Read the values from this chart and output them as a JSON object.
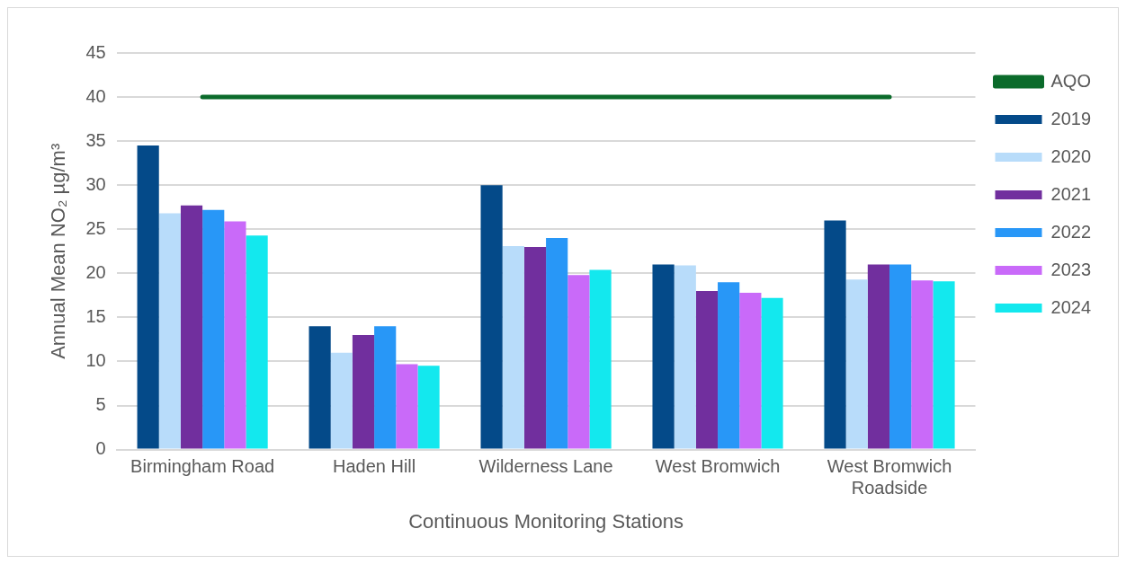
{
  "chart_data": {
    "type": "bar",
    "xlabel": "Continuous Monitoring Stations",
    "ylabel": "Annual Mean NO₂ µg/m³",
    "categories": [
      "Birmingham Road",
      "Haden Hill",
      "Wilderness Lane",
      "West Bromwich",
      "West Bromwich Roadside"
    ],
    "series": [
      {
        "name": "2019",
        "color": "#044a89",
        "values": [
          34.5,
          14,
          30,
          21,
          26
        ]
      },
      {
        "name": "2020",
        "color": "#b8dcfa",
        "values": [
          26.8,
          11,
          23.1,
          20.9,
          19.3
        ]
      },
      {
        "name": "2021",
        "color": "#712f9e",
        "values": [
          27.7,
          13,
          23,
          18,
          21
        ]
      },
      {
        "name": "2022",
        "color": "#2897f7",
        "values": [
          27.2,
          14,
          24,
          19,
          21
        ]
      },
      {
        "name": "2023",
        "color": "#c96af9",
        "values": [
          25.9,
          9.7,
          19.8,
          17.8,
          19.2
        ]
      },
      {
        "name": "2024",
        "color": "#13e8ee",
        "values": [
          24.3,
          9.5,
          20.4,
          17.2,
          19.1
        ]
      },
      {
        "name": "AQO",
        "type": "line",
        "color": "#0b6b2b",
        "values": [
          40,
          40,
          40,
          40,
          40
        ]
      }
    ],
    "ylim": [
      0,
      45
    ],
    "yticks": [
      0,
      5,
      10,
      15,
      20,
      25,
      30,
      35,
      40,
      45
    ],
    "grid": "y",
    "legend": "right",
    "marker": "none",
    "line_style": "solid"
  }
}
